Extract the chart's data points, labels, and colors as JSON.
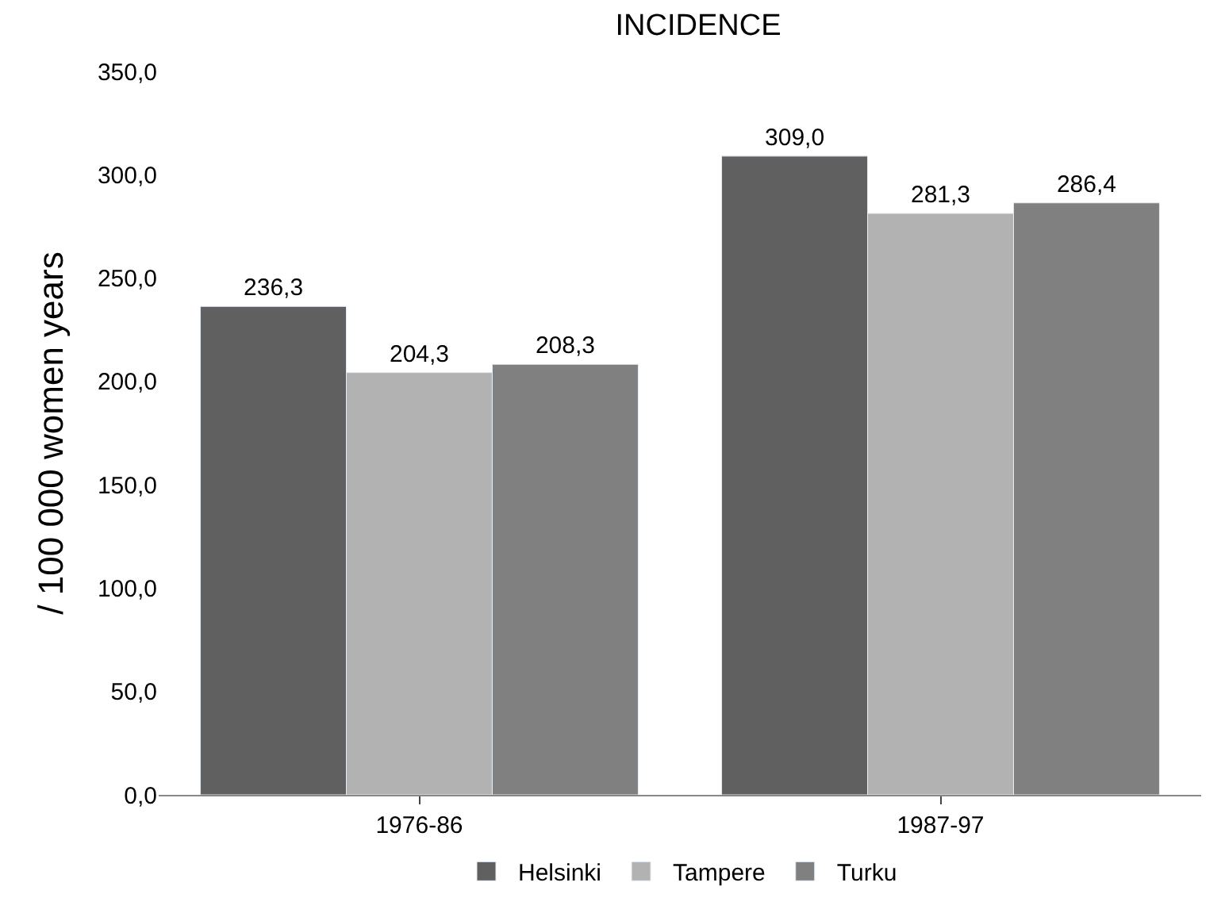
{
  "chart_data": {
    "type": "bar",
    "title": "INCIDENCE",
    "ylabel": "/ 100 000 women years",
    "categories": [
      "1976-86",
      "1987-97"
    ],
    "series": [
      {
        "name": "Helsinki",
        "color": "#606060",
        "values": [
          236.3,
          309.0
        ],
        "value_labels": [
          "236,3",
          "309,0"
        ]
      },
      {
        "name": "Tampere",
        "color": "#b2b2b2",
        "values": [
          204.3,
          281.3
        ],
        "value_labels": [
          "204,3",
          "281,3"
        ]
      },
      {
        "name": "Turku",
        "color": "#808080",
        "values": [
          208.3,
          286.4
        ],
        "value_labels": [
          "208,3",
          "286,4"
        ]
      }
    ],
    "ylim": [
      0,
      350
    ],
    "yticks": [
      {
        "value": 0,
        "label": "0,0"
      },
      {
        "value": 50,
        "label": "50,0"
      },
      {
        "value": 100,
        "label": "100,0"
      },
      {
        "value": 150,
        "label": "150,0"
      },
      {
        "value": 200,
        "label": "200,0"
      },
      {
        "value": 250,
        "label": "250,0"
      },
      {
        "value": 300,
        "label": "300,0"
      },
      {
        "value": 350,
        "label": "350,0"
      }
    ],
    "legend": "bottom"
  }
}
